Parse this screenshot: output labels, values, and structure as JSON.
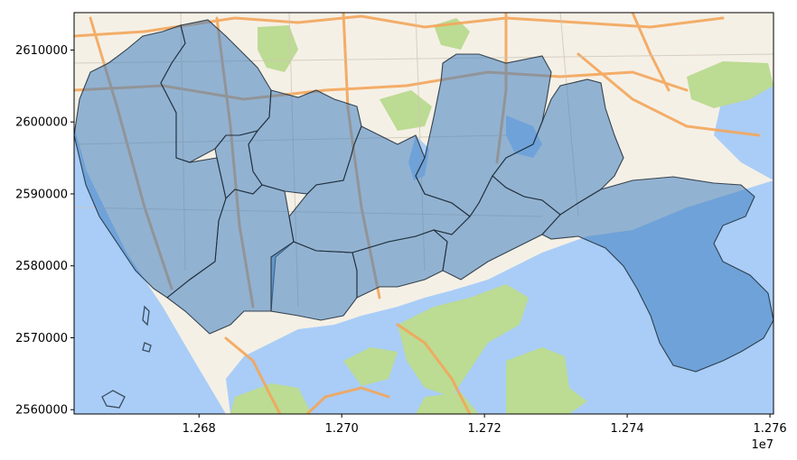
{
  "chart_data": {
    "type": "map",
    "xlabel": "",
    "ylabel": "",
    "x_ticks": [
      "1.268",
      "1.270",
      "1.272",
      "1.274",
      "1.276"
    ],
    "x_tick_values": [
      12680000,
      12700000,
      12720000,
      12740000,
      12760000
    ],
    "x_offset_label": "1e7",
    "y_ticks": [
      "2560000",
      "2570000",
      "2580000",
      "2590000",
      "2600000",
      "2610000"
    ],
    "y_tick_values": [
      2560000,
      2570000,
      2580000,
      2590000,
      2600000,
      2610000
    ],
    "xlim": [
      12662500,
      12760500
    ],
    "ylim": [
      2559400,
      2615200
    ],
    "basemap": "street-map-tiles",
    "region_fill_color": "#3f7fbf",
    "region_edge_color": "#1d2a35",
    "water_color": "#a9cdf7",
    "land_color": "#f5f0e6",
    "park_color": "#bcdb93",
    "road_color": "#f3a65b"
  }
}
